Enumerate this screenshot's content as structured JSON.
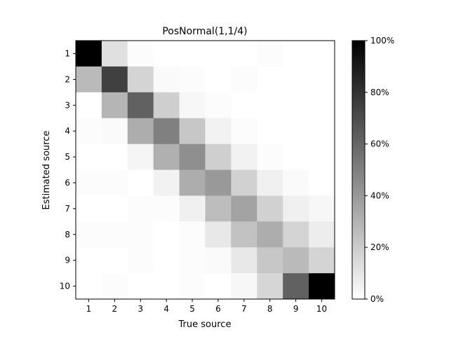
{
  "chart_data": {
    "type": "heatmap",
    "title": "PosNormal(1,1/4)",
    "xlabel": "True source",
    "ylabel": "Estimated source",
    "x_categories": [
      "1",
      "2",
      "3",
      "4",
      "5",
      "6",
      "7",
      "8",
      "9",
      "10"
    ],
    "y_categories": [
      "1",
      "2",
      "3",
      "4",
      "5",
      "6",
      "7",
      "8",
      "9",
      "10"
    ],
    "value_range": [
      0,
      100
    ],
    "colormap": "gray_r",
    "colorbar": {
      "ticks": [
        0,
        20,
        40,
        60,
        80,
        100
      ],
      "tick_labels": [
        "0%",
        "20%",
        "40%",
        "60%",
        "80%",
        "100%"
      ]
    },
    "values": [
      [
        100,
        12,
        1,
        0,
        0,
        0,
        0,
        1,
        0,
        0
      ],
      [
        27,
        75,
        17,
        2,
        1,
        0,
        1,
        0,
        0,
        0
      ],
      [
        0,
        29,
        62,
        19,
        3,
        1,
        0,
        0,
        0,
        0
      ],
      [
        1,
        2,
        32,
        50,
        22,
        5,
        1,
        0,
        0,
        0
      ],
      [
        0,
        0,
        4,
        31,
        44,
        19,
        5,
        1,
        0,
        0
      ],
      [
        1,
        1,
        0,
        5,
        32,
        40,
        18,
        6,
        2,
        0
      ],
      [
        0,
        0,
        1,
        1,
        6,
        26,
        36,
        18,
        6,
        3
      ],
      [
        1,
        1,
        1,
        0,
        1,
        9,
        24,
        32,
        17,
        7
      ],
      [
        0,
        0,
        1,
        0,
        1,
        2,
        9,
        22,
        27,
        17
      ],
      [
        0,
        1,
        0,
        0,
        1,
        0,
        3,
        16,
        62,
        100
      ]
    ]
  }
}
